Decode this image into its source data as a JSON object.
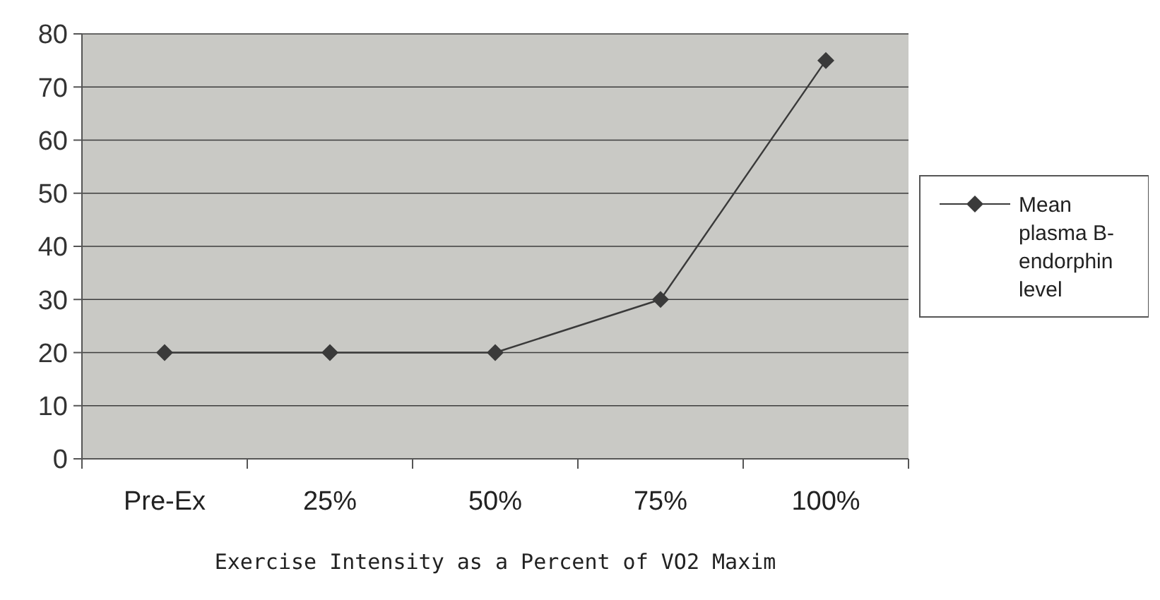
{
  "chart_data": {
    "type": "line",
    "xlabel": "Exercise Intensity as a Percent of VO2 Maxim",
    "categories": [
      "Pre-Ex",
      "25%",
      "50%",
      "75%",
      "100%"
    ],
    "series": [
      {
        "name": "Mean plasma B-endorphin level",
        "color": "#3a3a3a",
        "values": [
          20,
          20,
          20,
          30,
          75
        ]
      }
    ],
    "ylim": [
      0,
      80
    ],
    "yticks": [
      0,
      10,
      20,
      30,
      40,
      50,
      60,
      70,
      80
    ],
    "grid": "y",
    "legend": "right",
    "marker": "diamond",
    "line_style": "solid"
  }
}
